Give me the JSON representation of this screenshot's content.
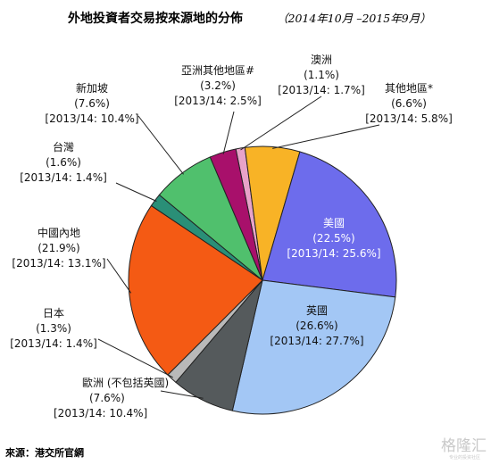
{
  "chart_data": {
    "type": "pie",
    "title": "外地投資者交易按來源地的分佈",
    "subtitle": "（2014年10月 –2015年9月）",
    "slices": [
      {
        "label": "澳洲",
        "value": 1.1,
        "value_text": "(1.1%)",
        "prior_text": "[2013/14: 1.7%]",
        "color": "#e8a3c9"
      },
      {
        "label": "其他地區*",
        "value": 6.6,
        "value_text": "(6.6%)",
        "prior_text": "[2013/14: 5.8%]",
        "color": "#f8b326"
      },
      {
        "label": "美國",
        "value": 22.5,
        "value_text": "(22.5%)",
        "prior_text": "[2013/14: 25.6%]",
        "color": "#6d6cec"
      },
      {
        "label": "英國",
        "value": 26.6,
        "value_text": "(26.6%)",
        "prior_text": "[2013/14: 27.7%]",
        "color": "#a3c7f5"
      },
      {
        "label": "歐洲 (不包括英國)",
        "value": 7.6,
        "value_text": "(7.6%)",
        "prior_text": "[2013/14: 10.4%]",
        "color": "#555a5c"
      },
      {
        "label": "日本",
        "value": 1.3,
        "value_text": "(1.3%)",
        "prior_text": "[2013/14: 1.4%]",
        "color": "#b9b9b9"
      },
      {
        "label": "中國內地",
        "value": 21.9,
        "value_text": "(21.9%)",
        "prior_text": "[2013/14: 13.1%]",
        "color": "#f45a14"
      },
      {
        "label": "台灣",
        "value": 1.6,
        "value_text": "(1.6%)",
        "prior_text": "[2013/14: 1.4%]",
        "color": "#2a8f77"
      },
      {
        "label": "新加坡",
        "value": 7.6,
        "value_text": "(7.6%)",
        "prior_text": "[2013/14: 10.4%]",
        "color": "#50c06d"
      },
      {
        "label": "亞洲其他地區#",
        "value": 3.2,
        "value_text": "(3.2%)",
        "prior_text": "[2013/14: 2.5%]",
        "color": "#a8106b"
      }
    ]
  },
  "source": "來源：港交所官網",
  "watermark": {
    "text": "格隆汇",
    "sub": "专业的投资社区"
  }
}
